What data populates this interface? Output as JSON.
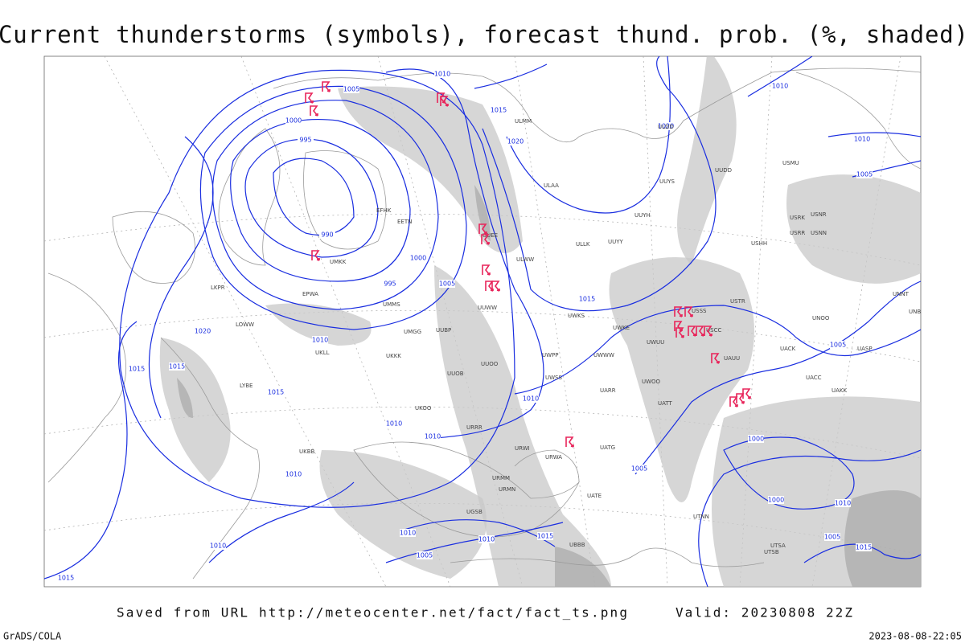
{
  "header": {
    "title": "Current thunderstorms (symbols), forecast thund. prob. (%, shaded)"
  },
  "footer": {
    "source": "Saved from URL http://meteocenter.net/fact/fact_ts.png",
    "valid": "Valid: 20230808 22Z",
    "software": "GrADS/COLA",
    "timestamp": "2023-08-08-22:05"
  },
  "map": {
    "isobar_labels": [
      "1010",
      "1005",
      "1015",
      "1000",
      "1020",
      "1020",
      "995",
      "990",
      "1000",
      "995",
      "1005",
      "1015",
      "1020",
      "1010",
      "1015",
      "1015",
      "1015",
      "1010",
      "1010",
      "1010",
      "1005",
      "1000",
      "1000",
      "1010",
      "1010",
      "1010",
      "1010",
      "1015",
      "1005",
      "1010",
      "1015",
      "1010",
      "1010",
      "1005",
      "1005",
      "1015",
      "1005"
    ],
    "station_labels": [
      "ULMM",
      "ULAA",
      "ULLK",
      "UUYY",
      "UUYH",
      "UUYS",
      "ULDD",
      "UUDD",
      "USMU",
      "USHH",
      "USRR",
      "USNN",
      "USRK",
      "USNR",
      "ULWW",
      "UUEE",
      "UUWW",
      "UUOO",
      "UWKS",
      "UWKE",
      "UWPP",
      "UWSS",
      "UWWW",
      "UWUU",
      "UWOO",
      "UARR",
      "UATT",
      "UATG",
      "URWA",
      "URWI",
      "URRR",
      "UKBB",
      "UKKK",
      "UKLL",
      "UMMS",
      "UMGG",
      "UUBP",
      "EFHK",
      "EETN",
      "UMKK",
      "EPWA",
      "LKPR",
      "LOWW",
      "LYBE",
      "UBBB",
      "UTNN",
      "UATE",
      "USSS",
      "USTR",
      "USCC",
      "UAUU",
      "UACC",
      "UAKK",
      "UNBB",
      "UNNT",
      "UNOO",
      "UASP",
      "UACK",
      "UUOB",
      "UKOO",
      "URMM",
      "URMN",
      "UGSB",
      "UTSA",
      "UTSB"
    ]
  }
}
